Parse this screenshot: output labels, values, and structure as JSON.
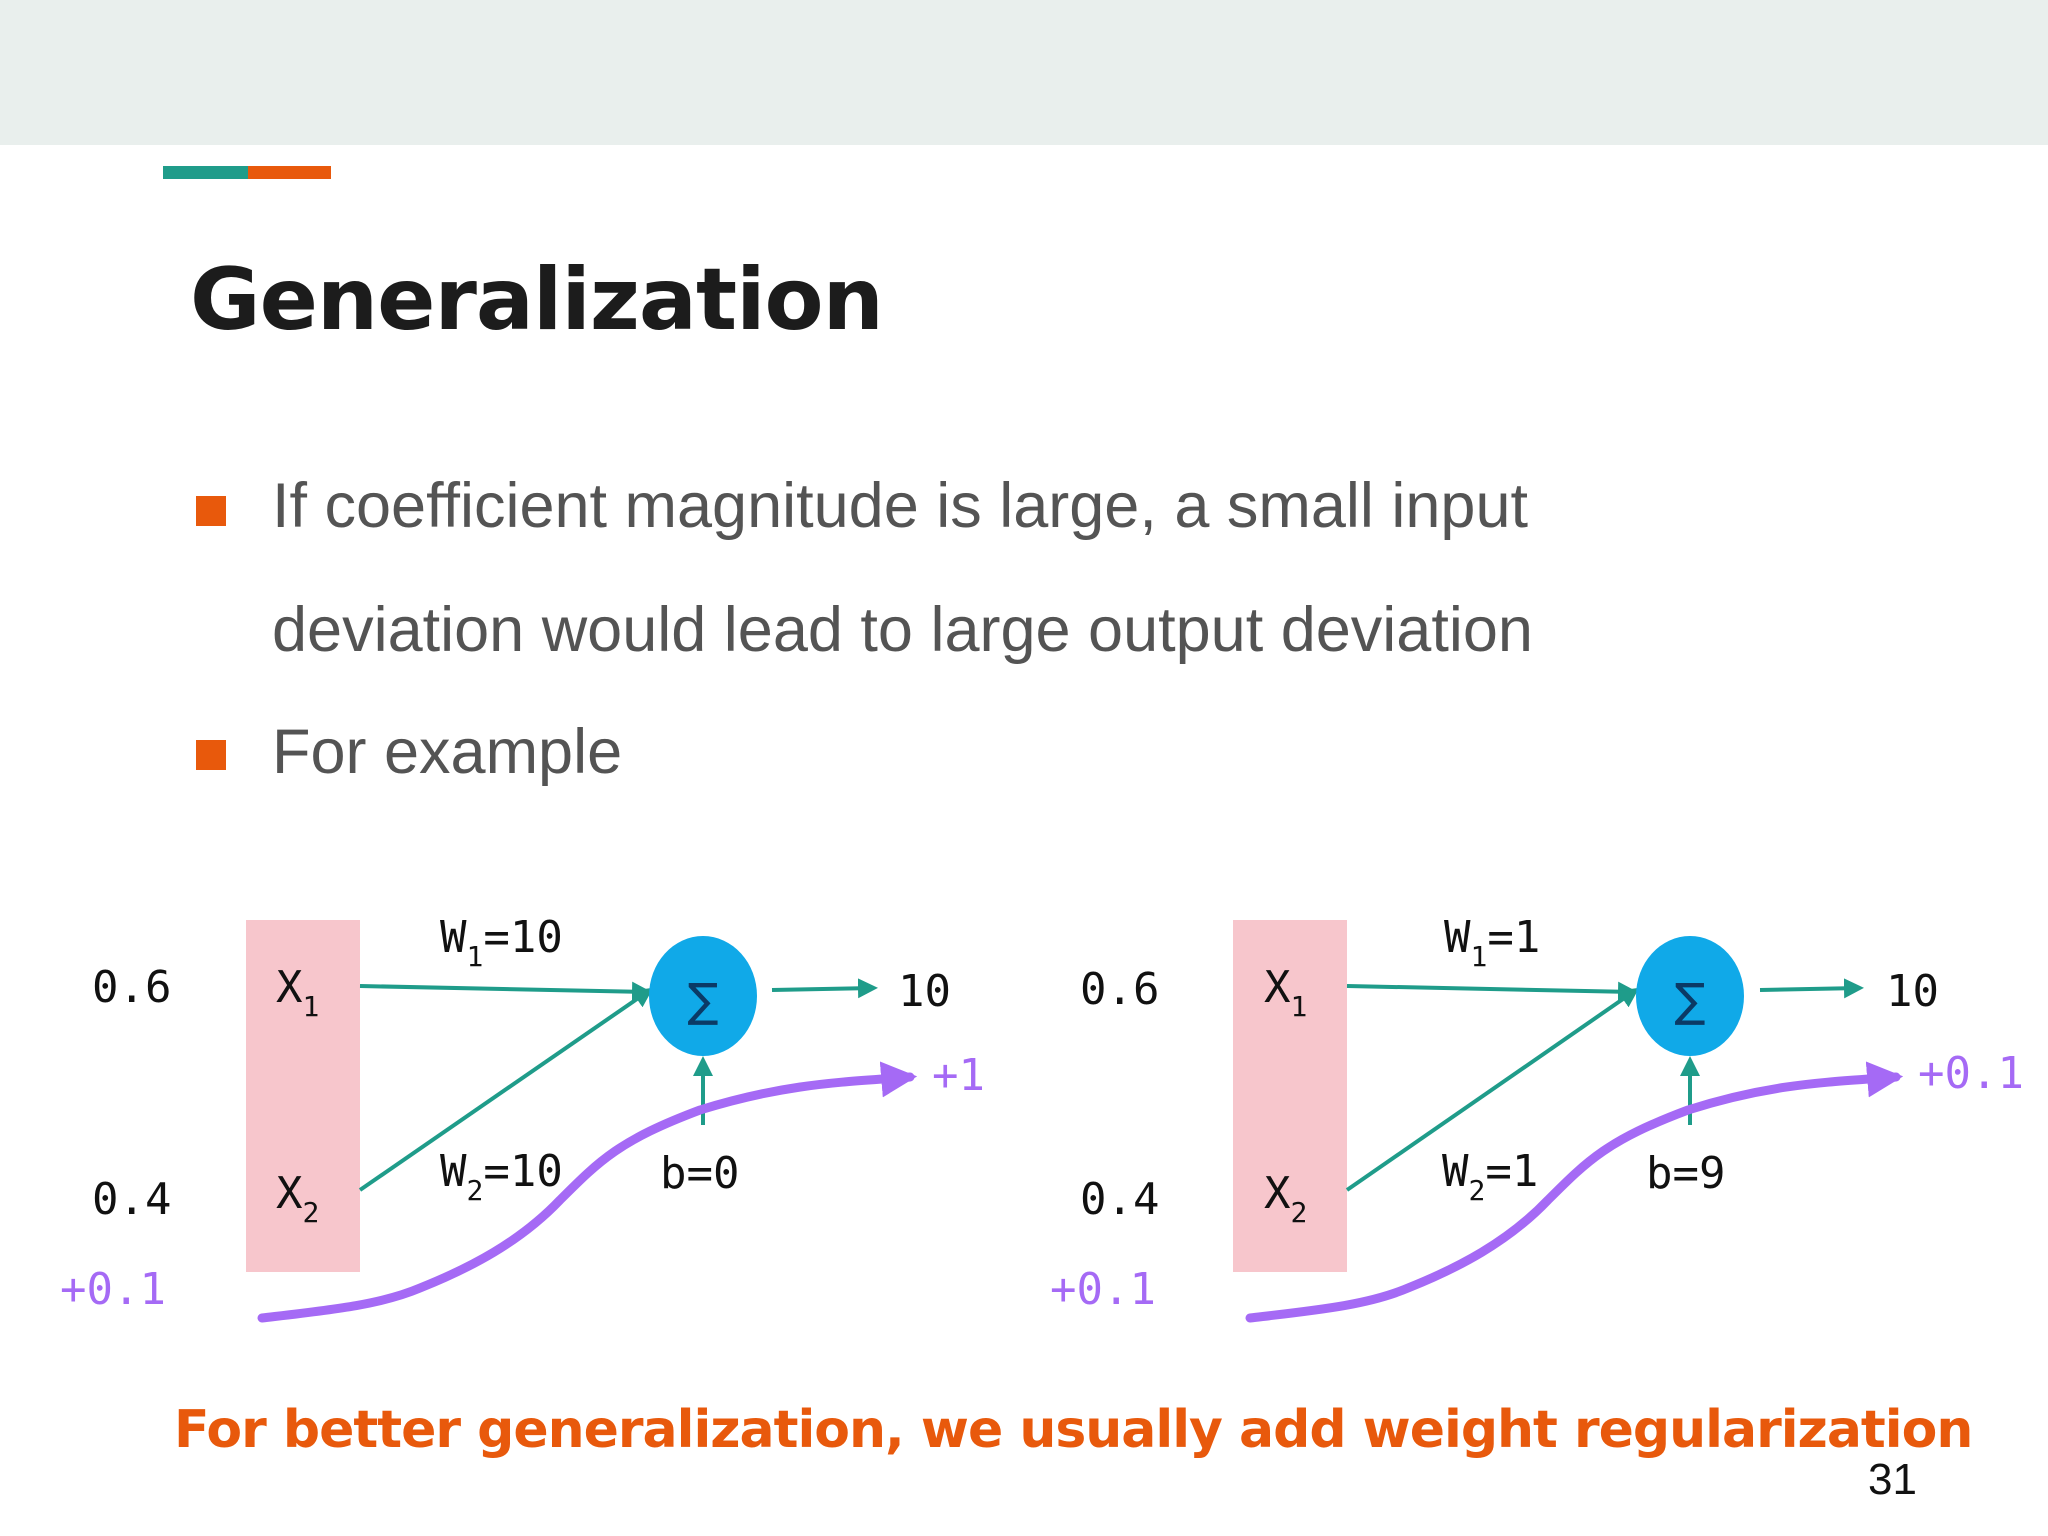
{
  "colors": {
    "top_band": "#e9efed",
    "accent_teal": "#1f9c8a",
    "accent_orange": "#e8590c",
    "bullet": "#e8590c",
    "input_box": "#f7c6cc",
    "sum_node": "#10a9e8",
    "arrow": "#1f9c8a",
    "perturbation": "#a56af5",
    "footer_text": "#e8590c"
  },
  "slide": {
    "title": "Generalization",
    "bullets": [
      {
        "lines": [
          "If coefficient magnitude is large, a small input",
          "deviation would lead to large output deviation"
        ]
      },
      {
        "lines": [
          "For example"
        ]
      }
    ],
    "footer": "For better generalization, we usually add weight regularization",
    "page_number": "31"
  },
  "diagrams": [
    {
      "x1_value": "0.6",
      "x2_value": "0.4",
      "x1_label": "X",
      "x1_sub": "1",
      "x2_label": "X",
      "x2_sub": "2",
      "w1_label": "W",
      "w1_sub": "1",
      "w1_value": "=10",
      "w2_label": "W",
      "w2_sub": "2",
      "w2_value": "=10",
      "sum_symbol": "∑",
      "bias": "b=0",
      "output": "10",
      "input_delta": "+0.1",
      "output_delta": "+1",
      "icons": [
        "sum-node-icon",
        "arrow-icon"
      ]
    },
    {
      "x1_value": "0.6",
      "x2_value": "0.4",
      "x1_label": "X",
      "x1_sub": "1",
      "x2_label": "X",
      "x2_sub": "2",
      "w1_label": "W",
      "w1_sub": "1",
      "w1_value": "=1",
      "w2_label": "W",
      "w2_sub": "2",
      "w2_value": "=1",
      "sum_symbol": "∑",
      "bias": "b=9",
      "output": "10",
      "input_delta": "+0.1",
      "output_delta": "+0.1",
      "icons": [
        "sum-node-icon",
        "arrow-icon"
      ]
    }
  ]
}
